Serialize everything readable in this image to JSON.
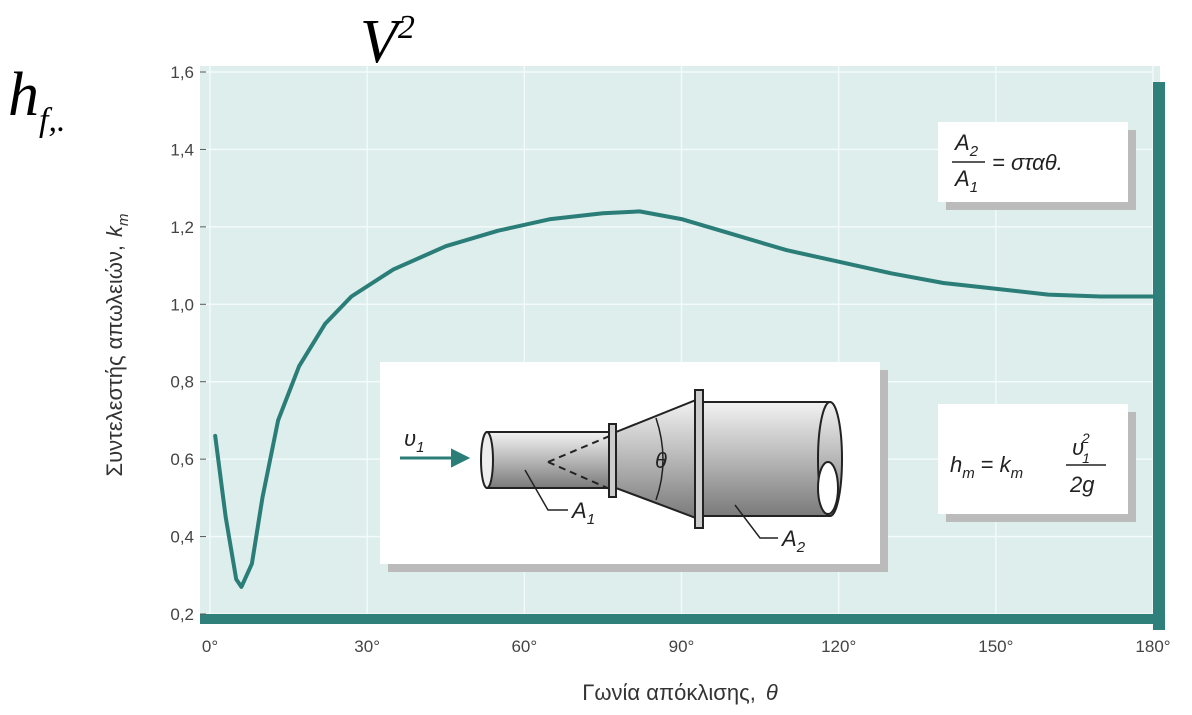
{
  "chart_data": {
    "type": "line",
    "x_label": "Γωνία απόκλισης,",
    "x_label_symbol": "θ",
    "y_label": "Συντελεστής απωλειών,",
    "y_label_symbol": "k",
    "y_label_subscript": "m",
    "x": [
      1,
      3,
      5,
      6,
      8,
      10,
      13,
      17,
      22,
      27,
      35,
      45,
      55,
      65,
      75,
      82,
      90,
      100,
      110,
      120,
      130,
      140,
      150,
      160,
      170,
      180
    ],
    "values": [
      0.66,
      0.45,
      0.29,
      0.27,
      0.33,
      0.5,
      0.7,
      0.84,
      0.95,
      1.02,
      1.09,
      1.15,
      1.19,
      1.22,
      1.235,
      1.24,
      1.22,
      1.18,
      1.14,
      1.11,
      1.08,
      1.055,
      1.04,
      1.025,
      1.02,
      1.02
    ],
    "color": "#2b7d78",
    "xlim": [
      0,
      180
    ],
    "ylim": [
      0.2,
      1.6
    ],
    "xticks": [
      {
        "value": 0,
        "label": "0°"
      },
      {
        "value": 30,
        "label": "30°"
      },
      {
        "value": 60,
        "label": "60°"
      },
      {
        "value": 90,
        "label": "90°"
      },
      {
        "value": 120,
        "label": "120°"
      },
      {
        "value": 150,
        "label": "150°"
      },
      {
        "value": 180,
        "label": "180°"
      }
    ],
    "yticks": [
      {
        "value": 0.2,
        "label": "0,2"
      },
      {
        "value": 0.4,
        "label": "0,4"
      },
      {
        "value": 0.6,
        "label": "0,6"
      },
      {
        "value": 0.8,
        "label": "0,8"
      },
      {
        "value": 1.0,
        "label": "1,0"
      },
      {
        "value": 1.2,
        "label": "1,2"
      },
      {
        "value": 1.4,
        "label": "1,4"
      },
      {
        "value": 1.6,
        "label": "1,6"
      }
    ],
    "grid": true,
    "area_ratio": {
      "numerator": "A",
      "numerator_sub": "2",
      "denominator": "A",
      "denominator_sub": "1",
      "rhs": "= σταθ."
    },
    "head_loss": {
      "lhs": "h",
      "lhs_sub": "m",
      "equals": "=",
      "coef": "k",
      "coef_sub": "m",
      "numerator": "υ",
      "numerator_sub": "1",
      "numerator_sup": "2",
      "denominator": "2g"
    },
    "diagram": {
      "velocity": "υ",
      "velocity_sub": "1",
      "angle": "θ",
      "inlet_area": "A",
      "inlet_sub": "1",
      "outlet_area": "A",
      "outlet_sub": "2"
    }
  },
  "cropped_formula": {
    "h": "h",
    "h_sub": "f,.",
    "v": "V",
    "v_sup": "2"
  }
}
